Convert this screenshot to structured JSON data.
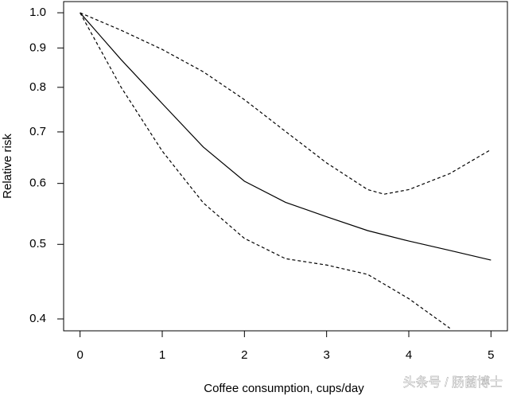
{
  "chart_data": {
    "type": "line",
    "x_label": "Coffee consumption, cups/day",
    "y_label": "Relative risk",
    "watermark": "头条号 / 肠菌博士",
    "ylog": true,
    "xlim": [
      -0.2,
      5.2
    ],
    "ylim": [
      0.386,
      1.034
    ],
    "xticks": [
      0,
      1,
      2,
      3,
      4,
      5
    ],
    "yticks": [
      {
        "value": 1,
        "label": "1.0"
      },
      0.9,
      0.8,
      0.7,
      0.6,
      0.5,
      0.4
    ],
    "series": [
      {
        "color": "#000000",
        "style": "solid",
        "x": [
          0,
          0.5,
          1,
          1.5,
          2,
          2.5,
          3,
          3.5,
          4,
          4.5,
          5
        ],
        "values": [
          1.0,
          0.869,
          0.762,
          0.669,
          0.604,
          0.567,
          0.543,
          0.521,
          0.505,
          0.491,
          0.477
        ]
      },
      {
        "color": "#000000",
        "style": "dashed",
        "x": [
          0,
          0.5,
          1,
          1.5,
          2,
          2.5,
          3,
          3.5,
          3.7,
          4,
          4.5,
          5
        ],
        "values": [
          1.0,
          0.949,
          0.896,
          0.838,
          0.771,
          0.701,
          0.638,
          0.589,
          0.581,
          0.589,
          0.618,
          0.664
        ]
      },
      {
        "color": "#000000",
        "style": "dashed",
        "x": [
          0,
          0.5,
          1,
          1.5,
          2,
          2.5,
          3,
          3.5,
          4,
          4.5
        ],
        "values": [
          1.0,
          0.8,
          0.661,
          0.566,
          0.509,
          0.479,
          0.47,
          0.457,
          0.425,
          0.389
        ]
      }
    ]
  }
}
